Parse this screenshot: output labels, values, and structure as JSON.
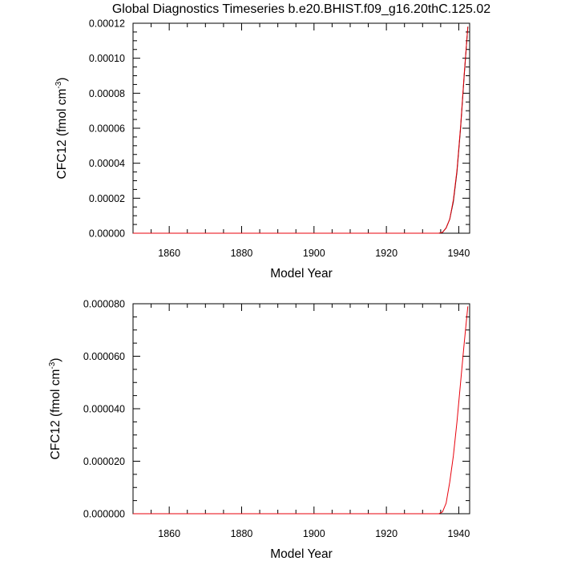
{
  "title": "Global Diagnostics Timeseries b.e20.BHIST.f09_g16.20thC.125.02",
  "chart_data": [
    {
      "type": "line",
      "xlabel": "Model Year",
      "ylabel_main": "CFC12 (fmol cm",
      "ylabel_sup": "-3",
      "ylabel_close": ")",
      "xlim": [
        1850,
        1943
      ],
      "ylim": [
        0,
        0.00012
      ],
      "xticks": [
        1860,
        1880,
        1900,
        1920,
        1940
      ],
      "xtick_labels": [
        "1860",
        "1880",
        "1900",
        "1920",
        "1940"
      ],
      "yticks": [
        0,
        2e-05,
        4e-05,
        6e-05,
        8e-05,
        0.0001,
        0.00012
      ],
      "ytick_labels": [
        "0.00000",
        "0.00002",
        "0.00004",
        "0.00006",
        "0.00008",
        "0.00010",
        "0.00012"
      ],
      "grid": false,
      "series": [
        {
          "color": "#000000",
          "x": [
            1850,
            1934.5,
            1935.5,
            1936.5,
            1937.5,
            1938.5,
            1939.5,
            1940.5,
            1941.5,
            1942.5
          ],
          "y": [
            0,
            0,
            5e-07,
            3e-06,
            8e-06,
            1.8e-05,
            3.5e-05,
            6e-05,
            9e-05,
            0.000118
          ]
        },
        {
          "color": "#e8000b",
          "x": [
            1850,
            1934.5,
            1935.5,
            1936.5,
            1937.5,
            1938.5,
            1939.5,
            1940.5,
            1941.5,
            1942.5
          ],
          "y": [
            0,
            0,
            5e-07,
            3e-06,
            8e-06,
            1.9e-05,
            3.6e-05,
            6.1e-05,
            9.1e-05,
            0.000118
          ]
        }
      ]
    },
    {
      "type": "line",
      "xlabel": "Model Year",
      "ylabel_main": "CFC12 (fmol cm",
      "ylabel_sup": "-3",
      "ylabel_close": ")",
      "xlim": [
        1850,
        1943
      ],
      "ylim": [
        0,
        8e-05
      ],
      "xticks": [
        1860,
        1880,
        1900,
        1920,
        1940
      ],
      "xtick_labels": [
        "1860",
        "1880",
        "1900",
        "1920",
        "1940"
      ],
      "yticks": [
        0,
        2e-05,
        4e-05,
        6e-05,
        8e-05
      ],
      "ytick_labels": [
        "0.000000",
        "0.000020",
        "0.000040",
        "0.000060",
        "0.000080"
      ],
      "grid": false,
      "series": [
        {
          "color": "#e8000b",
          "x": [
            1850,
            1934.5,
            1935.5,
            1936.5,
            1937.5,
            1938.5,
            1939.5,
            1940.5,
            1941.5,
            1942.5
          ],
          "y": [
            0,
            0,
            7e-07,
            4e-06,
            1.2e-05,
            2.2e-05,
            3.5e-05,
            5e-05,
            6.5e-05,
            7.9e-05
          ]
        }
      ]
    }
  ]
}
